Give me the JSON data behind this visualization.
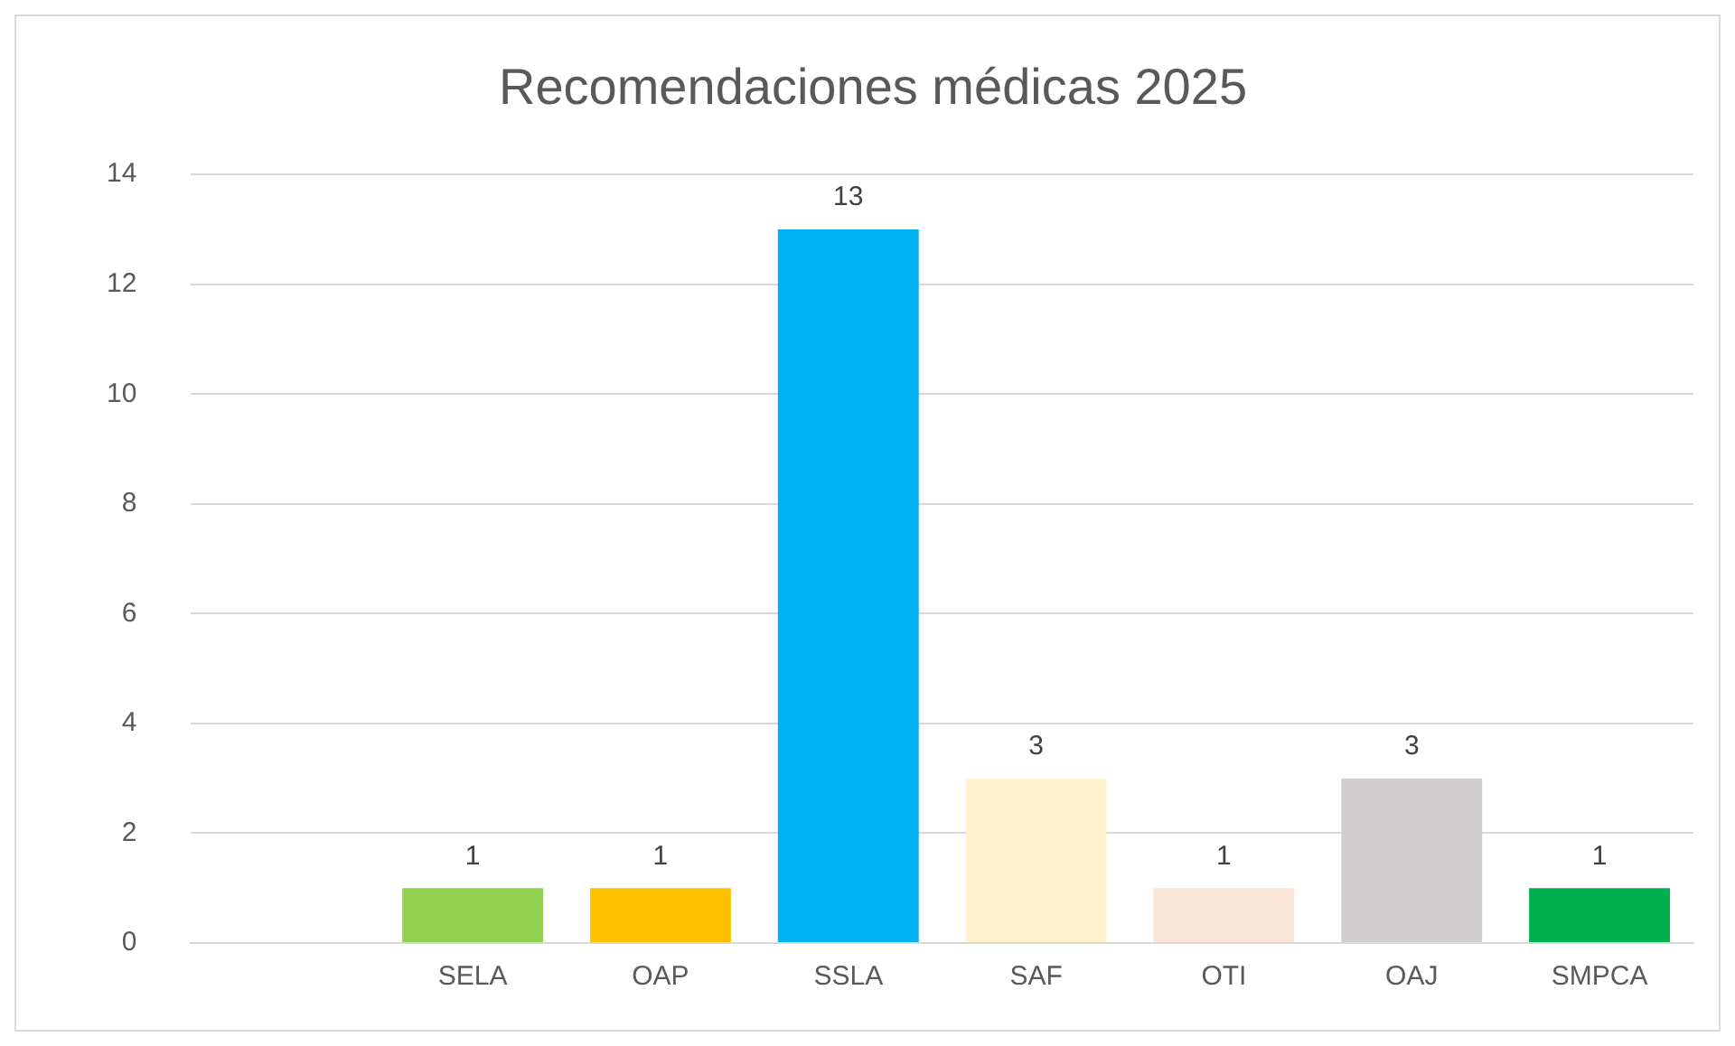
{
  "chart_data": {
    "type": "bar",
    "title": "Recomendaciones médicas 2025",
    "categories": [
      null,
      "SELA",
      "OAP",
      "SSLA",
      "SAF",
      "OTI",
      "OAJ",
      "SMPCA"
    ],
    "values": [
      null,
      1,
      1,
      13,
      3,
      1,
      3,
      1
    ],
    "colors": [
      "#92d050",
      "#92d050",
      "#ffc000",
      "#00b0f0",
      "#fff2cc",
      "#fbe5d6",
      "#d0cece",
      "#00b050"
    ],
    "ylim": [
      0,
      14
    ],
    "yticks": [
      0,
      2,
      4,
      6,
      8,
      10,
      12,
      14
    ],
    "grid": "y",
    "data_labels": true,
    "legend": false
  }
}
